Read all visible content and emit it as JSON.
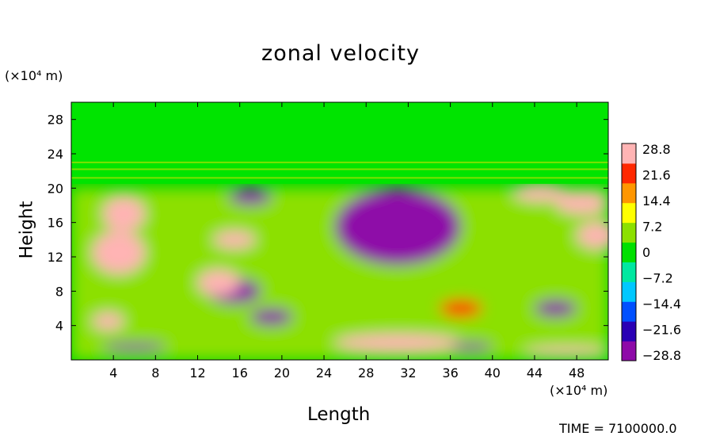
{
  "chart_data": {
    "type": "heatmap",
    "title": "zonal velocity",
    "xlabel": "Length",
    "ylabel": "Height",
    "x_unit": "(×10⁴ m)",
    "y_unit": "(×10⁴ m)",
    "xlim": [
      0,
      51
    ],
    "ylim": [
      0,
      30
    ],
    "x_ticks": [
      "4",
      "8",
      "12",
      "16",
      "20",
      "24",
      "28",
      "32",
      "36",
      "40",
      "44",
      "48"
    ],
    "x_tick_values": [
      4,
      8,
      12,
      16,
      20,
      24,
      28,
      32,
      36,
      40,
      44,
      48
    ],
    "y_ticks": [
      "4",
      "8",
      "12",
      "16",
      "20",
      "24",
      "28"
    ],
    "y_tick_values": [
      4,
      8,
      12,
      16,
      20,
      24,
      28
    ],
    "colorbar": {
      "labels": [
        "28.8",
        "21.6",
        "14.4",
        "7.2",
        "0",
        "−7.2",
        "−14.4",
        "−21.6",
        "−28.8"
      ],
      "min": -28.8,
      "max": 28.8,
      "colors": [
        "#8e0aa8",
        "#2a00b4",
        "#0050ff",
        "#00c8ff",
        "#00e8a0",
        "#00e000",
        "#8ce000",
        "#ffff00",
        "#ff9600",
        "#ff2800",
        "#ffb4b4"
      ]
    },
    "features": [
      {
        "x": 0,
        "y": 25,
        "w": 51,
        "h": 5,
        "v": 0
      },
      {
        "x": 25,
        "y": 11,
        "w": 12,
        "h": 9,
        "v": -28
      },
      {
        "x": 3,
        "y": 15,
        "w": 4,
        "h": 4,
        "v": 28
      },
      {
        "x": 2,
        "y": 10,
        "w": 5,
        "h": 5,
        "v": 28
      },
      {
        "x": 13,
        "y": 6.5,
        "w": 5,
        "h": 3,
        "v": -28
      },
      {
        "x": 12,
        "y": 7.5,
        "w": 4,
        "h": 3,
        "v": 28
      },
      {
        "x": 15,
        "y": 18,
        "w": 4,
        "h": 2,
        "v": -28
      },
      {
        "x": 13.5,
        "y": 13,
        "w": 4,
        "h": 2,
        "v": 28
      },
      {
        "x": 42,
        "y": 18.5,
        "w": 5,
        "h": 2,
        "v": 28
      },
      {
        "x": 46,
        "y": 17,
        "w": 5,
        "h": 2.5,
        "v": 28
      },
      {
        "x": 48,
        "y": 13,
        "w": 4,
        "h": 3,
        "v": 28
      },
      {
        "x": 35,
        "y": 5,
        "w": 4,
        "h": 2,
        "v": 22
      },
      {
        "x": 44,
        "y": 5,
        "w": 4,
        "h": 2,
        "v": -28
      },
      {
        "x": 2,
        "y": 3.5,
        "w": 3,
        "h": 2,
        "v": 28
      },
      {
        "x": 3,
        "y": 1,
        "w": 6,
        "h": 1,
        "v": -28
      },
      {
        "x": 25,
        "y": 1,
        "w": 12,
        "h": 2,
        "v": 28
      },
      {
        "x": 43,
        "y": 0.5,
        "w": 8,
        "h": 1,
        "v": 28
      },
      {
        "x": 17,
        "y": 4,
        "w": 4,
        "h": 2,
        "v": -28
      },
      {
        "x": 36,
        "y": 1,
        "w": 4,
        "h": 1,
        "v": -28
      }
    ]
  },
  "labels": {
    "time": "TIME = 7100000.0"
  }
}
